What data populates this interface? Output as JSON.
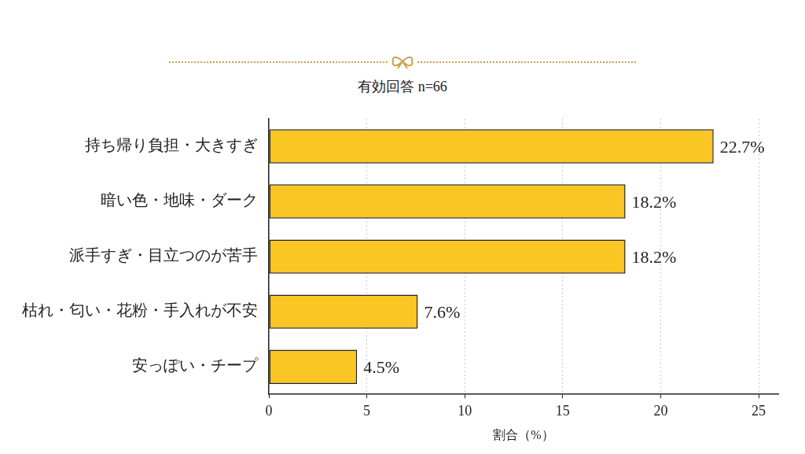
{
  "chart_data": {
    "type": "bar",
    "title": "有効回答 n=66",
    "categories": [
      "持ち帰り負担・大きすぎ",
      "暗い色・地味・ダーク",
      "派手すぎ・目立つのが苦手",
      "枯れ・匂い・花粉・手入れが不安",
      "安っぽい・チープ"
    ],
    "values": [
      22.7,
      18.2,
      18.2,
      7.6,
      4.5
    ],
    "value_labels": [
      "22.7%",
      "18.2%",
      "18.2%",
      "7.6%",
      "4.5%"
    ],
    "color": "#f9c623",
    "xlabel": "割合（%）",
    "xlim": [
      0,
      26
    ],
    "xticks": [
      0,
      5,
      10,
      15,
      20,
      25
    ],
    "orientation": "horizontal",
    "grid": true,
    "data_labels": true
  }
}
